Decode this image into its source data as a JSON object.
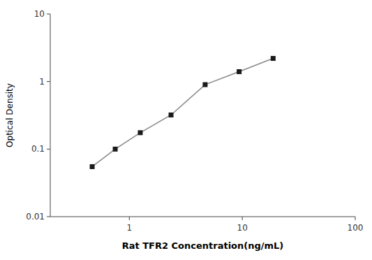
{
  "chart_data": {
    "type": "line",
    "x": [
      0.469,
      0.75,
      1.25,
      2.34,
      4.69,
      9.375,
      18.75
    ],
    "values": [
      0.055,
      0.1,
      0.175,
      0.32,
      0.9,
      1.4,
      2.2
    ],
    "xlabel": "Rat TFR2 Concentration(ng/mL)",
    "ylabel": "Optical Density",
    "log": true,
    "xlim": [
      0.19952623149688797,
      100
    ],
    "ylim": [
      0.01,
      10
    ],
    "xticks": [
      1,
      10,
      100
    ],
    "yticks": [
      0.01,
      0.1,
      1,
      10
    ],
    "color": "#888888",
    "colors": [
      "#1a1a1a",
      "#1a1a1a",
      "#1a1a1a",
      "#1a1a1a",
      "#1a1a1a",
      "#1a1a1a",
      "#1a1a1a"
    ],
    "marker": "square",
    "grid": false
  }
}
